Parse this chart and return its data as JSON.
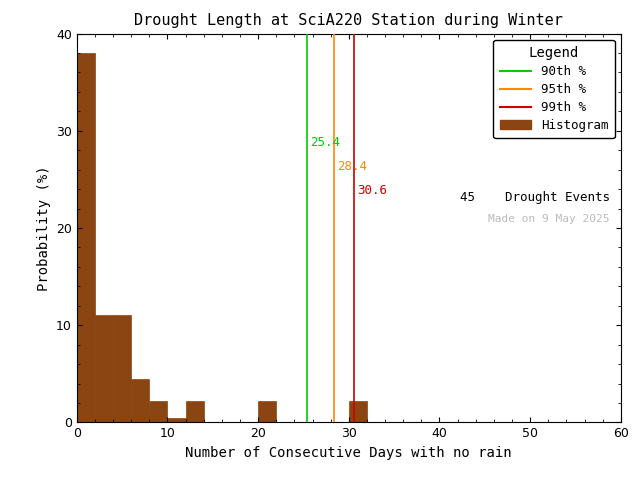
{
  "title": "Drought Length at SciA220 Station during Winter",
  "xlabel": "Number of Consecutive Days with no rain",
  "ylabel": "Probability (%)",
  "xlim": [
    0,
    60
  ],
  "ylim": [
    0,
    40
  ],
  "xticks": [
    0,
    10,
    20,
    30,
    40,
    50,
    60
  ],
  "yticks": [
    0,
    10,
    20,
    30,
    40
  ],
  "bar_color": "#8B4513",
  "bar_edgecolor": "#8B4513",
  "background_color": "#ffffff",
  "percentile_90": 25.4,
  "percentile_95": 28.4,
  "percentile_99": 30.6,
  "percentile_90_color": "#00cc00",
  "percentile_95_color": "#ff8800",
  "percentile_99_color": "#cc0000",
  "num_events": 45,
  "date_text": "Made on 9 May 2025",
  "date_text_color": "#bbbbbb",
  "legend_title": "Legend",
  "bin_edges": [
    0,
    2,
    4,
    6,
    8,
    10,
    12,
    14,
    16,
    18,
    20,
    22,
    24,
    26,
    28,
    30,
    32,
    34,
    36,
    38,
    40,
    42,
    44,
    46,
    48,
    50,
    52,
    54,
    56,
    58,
    60
  ],
  "bin_heights": [
    38.0,
    11.0,
    11.0,
    4.5,
    2.2,
    0.5,
    2.2,
    0,
    0,
    0,
    2.2,
    0,
    0,
    0,
    0,
    2.2,
    0,
    0,
    0,
    0,
    0,
    0,
    0,
    0,
    0,
    0,
    0,
    0,
    0,
    0
  ]
}
